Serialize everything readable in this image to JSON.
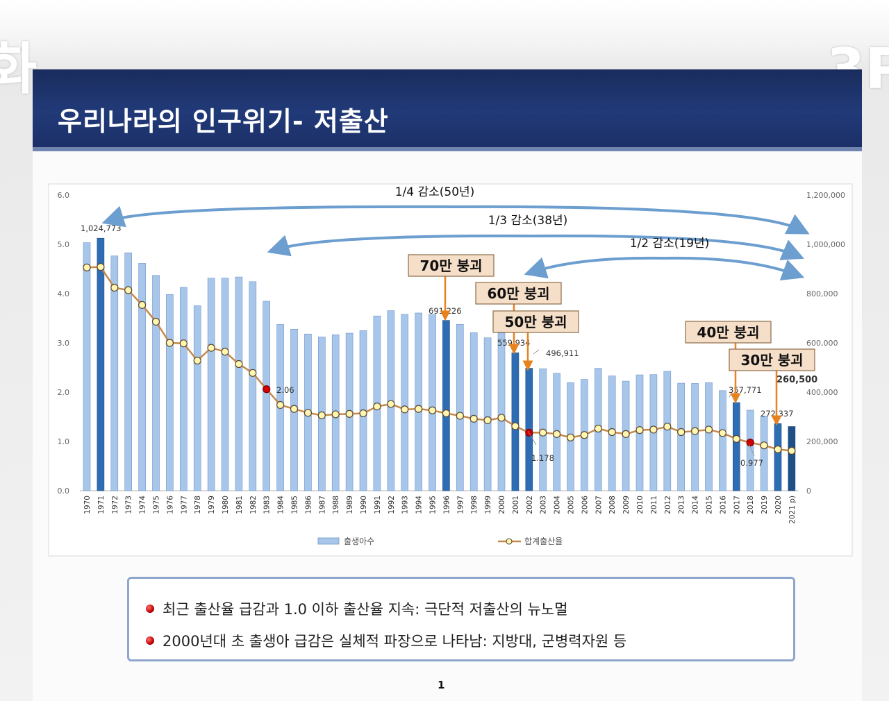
{
  "slide": {
    "title": "우리나라의 인구위기- 저출산",
    "left_fragment": "화",
    "right_fragment": "3P",
    "page_number": "1",
    "bullets": [
      "최근 출산율 급감과 1.0 이하 출산율 지속: 극단적 저출산의 뉴노멀",
      "2000년대 초 출생아 급감은 실체적 파장으로 나타남: 지방대, 군병력자원 등"
    ]
  },
  "colors": {
    "bar": "#a7c6ea",
    "bar_highlight": "#2e6db4",
    "bar_border": "#6d97c9",
    "line": "#c5884a",
    "marker_fill": "#fff6b0",
    "marker_highlight": "#d40000",
    "arrow": "#6c9ecf",
    "callout_fill": "#f6dfc8",
    "callout_border": "#8b6b4a",
    "pointer": "#e8821e"
  },
  "chart_data": {
    "type": "bar",
    "categories": [
      "1970",
      "1971",
      "1972",
      "1973",
      "1974",
      "1975",
      "1976",
      "1977",
      "1978",
      "1979",
      "1980",
      "1981",
      "1982",
      "1983",
      "1984",
      "1985",
      "1986",
      "1987",
      "1988",
      "1989",
      "1990",
      "1991",
      "1992",
      "1993",
      "1994",
      "1995",
      "1996",
      "1997",
      "1998",
      "1999",
      "2000",
      "2001",
      "2002",
      "2003",
      "2004",
      "2005",
      "2006",
      "2007",
      "2008",
      "2009",
      "2010",
      "2011",
      "2012",
      "2013",
      "2014",
      "2015",
      "2016",
      "2017",
      "2018",
      "2019",
      "2020",
      "2021 p)"
    ],
    "series": [
      {
        "name": "출생아수",
        "axis": "right",
        "values": [
          1006645,
          1024773,
          952780,
          965521,
          922823,
          874030,
          796331,
          825339,
          750728,
          862669,
          862835,
          867409,
          848312,
          769155,
          674793,
          655489,
          636019,
          623831,
          633092,
          639431,
          649738,
          709275,
          730678,
          715826,
          721185,
          715020,
          691226,
          675394,
          641594,
          620668,
          640089,
          559934,
          496911,
          495036,
          476958,
          438707,
          451759,
          496822,
          465892,
          444849,
          470171,
          471265,
          484550,
          436455,
          435435,
          438420,
          406243,
          357771,
          326822,
          302676,
          272337,
          260500
        ],
        "highlight_indices": [
          1,
          26,
          31,
          32,
          47,
          50,
          51
        ]
      },
      {
        "name": "합계출산율",
        "axis": "left",
        "values": [
          4.53,
          4.54,
          4.12,
          4.07,
          3.77,
          3.43,
          3.0,
          2.99,
          2.64,
          2.9,
          2.82,
          2.57,
          2.39,
          2.06,
          1.74,
          1.66,
          1.58,
          1.53,
          1.55,
          1.56,
          1.57,
          1.71,
          1.76,
          1.65,
          1.66,
          1.63,
          1.57,
          1.52,
          1.46,
          1.43,
          1.48,
          1.31,
          1.178,
          1.18,
          1.15,
          1.08,
          1.13,
          1.26,
          1.19,
          1.15,
          1.23,
          1.24,
          1.3,
          1.19,
          1.21,
          1.24,
          1.17,
          1.05,
          0.977,
          0.92,
          0.84,
          0.81
        ],
        "highlight_indices": [
          13,
          32,
          48
        ]
      }
    ],
    "yaxis_left": {
      "min": 0,
      "max": 6,
      "ticks": [
        "0.0",
        "1.0",
        "2.0",
        "3.0",
        "4.0",
        "5.0",
        "6.0"
      ]
    },
    "yaxis_right": {
      "min": 0,
      "max": 1200000,
      "ticks": [
        "0",
        "200,000",
        "400,000",
        "600,000",
        "800,000",
        "1,000,000",
        "1,200,000"
      ]
    },
    "grid": false,
    "legend_position": "bottom",
    "data_labels": [
      {
        "series": 0,
        "index": 1,
        "text": "1,024,773"
      },
      {
        "series": 0,
        "index": 26,
        "text": "691,226"
      },
      {
        "series": 0,
        "index": 31,
        "text": "559,934"
      },
      {
        "series": 0,
        "index": 32,
        "text": "496,911"
      },
      {
        "series": 0,
        "index": 47,
        "text": "357,771"
      },
      {
        "series": 0,
        "index": 50,
        "text": "272,337"
      },
      {
        "series": 0,
        "index": 51,
        "text": "260,500"
      },
      {
        "series": 1,
        "index": 13,
        "text": "2.06"
      },
      {
        "series": 1,
        "index": 32,
        "text": "1.178"
      },
      {
        "series": 1,
        "index": 48,
        "text": "0.977"
      }
    ],
    "spans": [
      {
        "text": "1/4 감소(50년)",
        "from_index": 1,
        "to_index": 51
      },
      {
        "text": "1/3 감소(38년)",
        "from_index": 13,
        "to_index": 51
      },
      {
        "text": "1/2 감소(19년)",
        "from_index": 32,
        "to_index": 51
      }
    ],
    "callouts": [
      {
        "text": "70만 붕괴",
        "index": 26
      },
      {
        "text": "60만 붕괴",
        "index": 31
      },
      {
        "text": "50만 붕괴",
        "index": 32
      },
      {
        "text": "40만 붕괴",
        "index": 47
      },
      {
        "text": "30만 붕괴",
        "index": 50
      }
    ]
  }
}
